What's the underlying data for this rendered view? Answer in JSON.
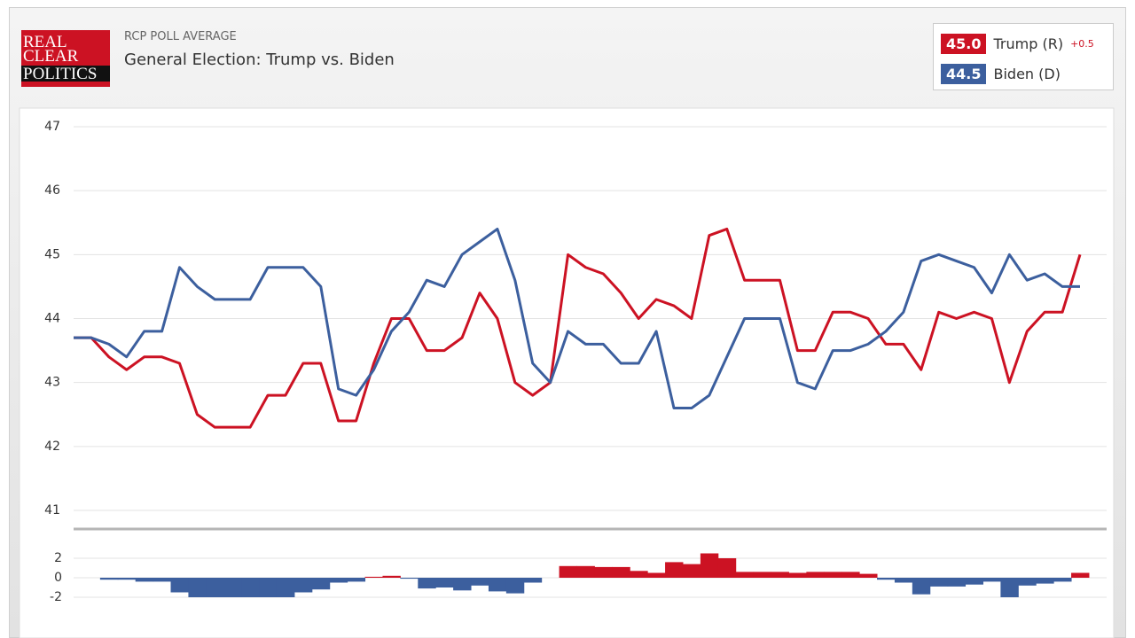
{
  "header": {
    "logo": [
      "REAL",
      "CLEAR",
      "POLITICS"
    ],
    "kicker": "RCP POLL AVERAGE",
    "title": "General Election: Trump vs. Biden",
    "legend": [
      {
        "value": "45.0",
        "name": "Trump (R)",
        "change": "+0.5"
      },
      {
        "value": "44.5",
        "name": "Biden (D)"
      }
    ]
  },
  "chart_data": [
    {
      "type": "line",
      "ylim": [
        41,
        47
      ],
      "yticks": [
        41,
        42,
        43,
        44,
        45,
        46,
        47
      ],
      "grid": true,
      "series": [
        {
          "name": "Trump (R)",
          "color": "#cc1223",
          "values": [
            43.7,
            43.7,
            43.4,
            43.2,
            43.4,
            43.4,
            43.3,
            42.5,
            42.3,
            42.3,
            42.3,
            42.8,
            42.8,
            43.3,
            43.3,
            42.4,
            42.4,
            43.3,
            44.0,
            44.0,
            43.5,
            43.5,
            43.7,
            44.4,
            44.0,
            43.0,
            42.8,
            43.0,
            45.0,
            44.8,
            44.7,
            44.4,
            44.0,
            44.3,
            44.2,
            44.0,
            45.3,
            45.4,
            44.6,
            44.6,
            44.6,
            43.5,
            43.5,
            44.1,
            44.1,
            44.0,
            43.6,
            43.6,
            43.2,
            44.1,
            44.0,
            44.1,
            44.0,
            43.0,
            43.8,
            44.1,
            44.1,
            45.0
          ]
        },
        {
          "name": "Biden (D)",
          "color": "#3c5f9e",
          "values": [
            43.7,
            43.7,
            43.6,
            43.4,
            43.8,
            43.8,
            44.8,
            44.5,
            44.3,
            44.3,
            44.3,
            44.8,
            44.8,
            44.8,
            44.5,
            42.9,
            42.8,
            43.2,
            43.8,
            44.1,
            44.6,
            44.5,
            45.0,
            45.2,
            45.4,
            44.6,
            43.3,
            43.0,
            43.8,
            43.6,
            43.6,
            43.3,
            43.3,
            43.8,
            42.6,
            42.6,
            42.8,
            43.4,
            44.0,
            44.0,
            44.0,
            43.0,
            42.9,
            43.5,
            43.5,
            43.6,
            43.8,
            44.1,
            44.9,
            45.0,
            44.9,
            44.8,
            44.4,
            45.0,
            44.6,
            44.7,
            44.5,
            44.5
          ]
        }
      ]
    },
    {
      "type": "area",
      "ylim": [
        -3,
        3
      ],
      "yticks": [
        2,
        0,
        -2
      ],
      "grid": true,
      "colors": {
        "positive": "#cc1223",
        "negative": "#3c5f9e"
      },
      "values": [
        0,
        0,
        -0.2,
        -0.2,
        -0.4,
        -0.4,
        -1.5,
        -2.0,
        -2.0,
        -2.0,
        -2.0,
        -2.0,
        -2.0,
        -1.5,
        -1.2,
        -0.5,
        -0.4,
        0.1,
        0.2,
        -0.1,
        -1.1,
        -1.0,
        -1.3,
        -0.8,
        -1.4,
        -1.6,
        -0.5,
        0,
        1.2,
        1.2,
        1.1,
        1.1,
        0.7,
        0.5,
        1.6,
        1.4,
        2.5,
        2.0,
        0.6,
        0.6,
        0.6,
        0.5,
        0.6,
        0.6,
        0.6,
        0.4,
        -0.2,
        -0.5,
        -1.7,
        -0.9,
        -0.9,
        -0.7,
        -0.4,
        -2.0,
        -0.8,
        -0.6,
        -0.4,
        0.5
      ]
    }
  ]
}
